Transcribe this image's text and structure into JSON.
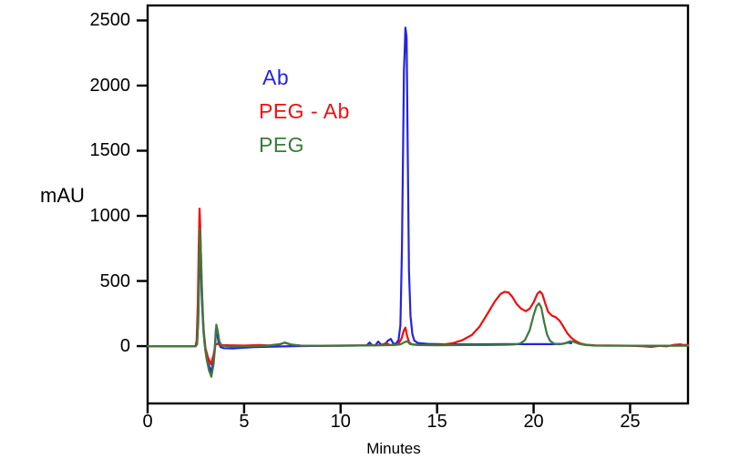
{
  "figure": {
    "background": "#ffffff",
    "frame_color": "#000000"
  },
  "chart_data": {
    "type": "line",
    "title": "",
    "xlabel": "Minutes",
    "ylabel": "mAU",
    "xlim": [
      0,
      28
    ],
    "ylim": [
      -440,
      2615
    ],
    "x_ticks": [
      0,
      5,
      10,
      15,
      20,
      25
    ],
    "y_ticks": [
      0,
      500,
      1000,
      1500,
      2000,
      2500
    ],
    "grid": false,
    "legend": {
      "position": "inside-upper-left",
      "entries": [
        {
          "label": "Ab",
          "color": "#2424e0",
          "x": 288,
          "y": 72
        },
        {
          "label": "PEG - Ab",
          "color": "#f20d0d",
          "x": 284,
          "y": 109
        },
        {
          "label": "PEG",
          "color": "#3c7a3c",
          "x": 284,
          "y": 146
        }
      ]
    },
    "series": [
      {
        "name": "Ab",
        "color": "#2424e0",
        "points": [
          [
            0,
            0
          ],
          [
            2.0,
            0
          ],
          [
            2.5,
            0
          ],
          [
            2.56,
            15
          ],
          [
            2.62,
            180
          ],
          [
            2.67,
            530
          ],
          [
            2.71,
            780
          ],
          [
            2.75,
            640
          ],
          [
            2.82,
            320
          ],
          [
            2.9,
            100
          ],
          [
            3.0,
            -40
          ],
          [
            3.12,
            -125
          ],
          [
            3.28,
            -195
          ],
          [
            3.4,
            -130
          ],
          [
            3.48,
            -15
          ],
          [
            3.54,
            135
          ],
          [
            3.6,
            100
          ],
          [
            3.68,
            30
          ],
          [
            3.78,
            -8
          ],
          [
            3.95,
            -16
          ],
          [
            4.4,
            -18
          ],
          [
            4.9,
            -13
          ],
          [
            5.5,
            -8
          ],
          [
            6.5,
            -4
          ],
          [
            7.5,
            0
          ],
          [
            9.0,
            2
          ],
          [
            10.5,
            4
          ],
          [
            11.35,
            5
          ],
          [
            11.5,
            28
          ],
          [
            11.62,
            9
          ],
          [
            11.8,
            7
          ],
          [
            11.95,
            35
          ],
          [
            12.1,
            11
          ],
          [
            12.3,
            13
          ],
          [
            12.45,
            42
          ],
          [
            12.6,
            55
          ],
          [
            12.72,
            22
          ],
          [
            12.85,
            16
          ],
          [
            13.0,
            45
          ],
          [
            13.1,
            160
          ],
          [
            13.18,
            750
          ],
          [
            13.24,
            1550
          ],
          [
            13.28,
            2120
          ],
          [
            13.32,
            2260
          ],
          [
            13.36,
            2445
          ],
          [
            13.42,
            2370
          ],
          [
            13.48,
            1450
          ],
          [
            13.54,
            580
          ],
          [
            13.62,
            230
          ],
          [
            13.72,
            90
          ],
          [
            13.82,
            42
          ],
          [
            14.0,
            24
          ],
          [
            14.5,
            17
          ],
          [
            15.5,
            14
          ],
          [
            17.0,
            14
          ],
          [
            18.5,
            15
          ],
          [
            20.0,
            15
          ],
          [
            21.0,
            15
          ],
          [
            21.5,
            18
          ],
          [
            21.8,
            27
          ],
          [
            21.95,
            22
          ]
        ]
      },
      {
        "name": "PEG - Ab",
        "color": "#f20d0d",
        "points": [
          [
            0,
            0
          ],
          [
            2.0,
            0
          ],
          [
            2.48,
            0
          ],
          [
            2.54,
            40
          ],
          [
            2.6,
            330
          ],
          [
            2.65,
            760
          ],
          [
            2.69,
            1055
          ],
          [
            2.73,
            910
          ],
          [
            2.8,
            470
          ],
          [
            2.9,
            130
          ],
          [
            3.0,
            -15
          ],
          [
            3.12,
            -85
          ],
          [
            3.28,
            -140
          ],
          [
            3.42,
            -65
          ],
          [
            3.52,
            12
          ],
          [
            3.62,
            18
          ],
          [
            3.76,
            8
          ],
          [
            4.3,
            6
          ],
          [
            5.0,
            4
          ],
          [
            5.8,
            9
          ],
          [
            6.3,
            5
          ],
          [
            6.85,
            15
          ],
          [
            7.1,
            26
          ],
          [
            7.4,
            12
          ],
          [
            7.9,
            4
          ],
          [
            9.0,
            3
          ],
          [
            10.0,
            4
          ],
          [
            11.0,
            5
          ],
          [
            11.8,
            6
          ],
          [
            12.1,
            8
          ],
          [
            12.35,
            23
          ],
          [
            12.55,
            9
          ],
          [
            12.8,
            10
          ],
          [
            13.0,
            18
          ],
          [
            13.15,
            55
          ],
          [
            13.28,
            122
          ],
          [
            13.36,
            142
          ],
          [
            13.44,
            82
          ],
          [
            13.55,
            30
          ],
          [
            13.7,
            14
          ],
          [
            14.2,
            8
          ],
          [
            14.8,
            8
          ],
          [
            15.3,
            12
          ],
          [
            15.8,
            22
          ],
          [
            16.3,
            45
          ],
          [
            16.8,
            85
          ],
          [
            17.2,
            150
          ],
          [
            17.6,
            245
          ],
          [
            18.0,
            345
          ],
          [
            18.3,
            402
          ],
          [
            18.5,
            417
          ],
          [
            18.7,
            412
          ],
          [
            18.9,
            378
          ],
          [
            19.1,
            328
          ],
          [
            19.35,
            288
          ],
          [
            19.6,
            268
          ],
          [
            19.8,
            288
          ],
          [
            20.0,
            336
          ],
          [
            20.2,
            403
          ],
          [
            20.33,
            420
          ],
          [
            20.45,
            400
          ],
          [
            20.6,
            330
          ],
          [
            20.75,
            263
          ],
          [
            20.95,
            234
          ],
          [
            21.15,
            222
          ],
          [
            21.35,
            194
          ],
          [
            21.55,
            148
          ],
          [
            21.75,
            98
          ],
          [
            21.95,
            64
          ],
          [
            22.15,
            42
          ],
          [
            22.4,
            22
          ],
          [
            22.7,
            11
          ],
          [
            23.2,
            6
          ],
          [
            24.0,
            5
          ],
          [
            25.0,
            3
          ],
          [
            25.6,
            0
          ],
          [
            26.1,
            -6
          ],
          [
            26.5,
            2
          ],
          [
            26.9,
            -2
          ],
          [
            27.3,
            10
          ],
          [
            27.6,
            14
          ],
          [
            27.8,
            8
          ],
          [
            28.0,
            10
          ]
        ]
      },
      {
        "name": "PEG",
        "color": "#3c7a3c",
        "points": [
          [
            0,
            0
          ],
          [
            2.0,
            0
          ],
          [
            2.5,
            0
          ],
          [
            2.57,
            20
          ],
          [
            2.63,
            270
          ],
          [
            2.68,
            660
          ],
          [
            2.72,
            900
          ],
          [
            2.77,
            670
          ],
          [
            2.85,
            250
          ],
          [
            2.95,
            15
          ],
          [
            3.05,
            -95
          ],
          [
            3.18,
            -185
          ],
          [
            3.3,
            -235
          ],
          [
            3.42,
            -140
          ],
          [
            3.5,
            -5
          ],
          [
            3.56,
            165
          ],
          [
            3.63,
            118
          ],
          [
            3.72,
            34
          ],
          [
            3.84,
            4
          ],
          [
            4.4,
            -4
          ],
          [
            5.2,
            -1
          ],
          [
            6.2,
            3
          ],
          [
            6.85,
            13
          ],
          [
            7.1,
            28
          ],
          [
            7.45,
            12
          ],
          [
            7.95,
            4
          ],
          [
            9.0,
            3
          ],
          [
            10.5,
            4
          ],
          [
            12.0,
            6
          ],
          [
            12.8,
            8
          ],
          [
            13.1,
            13
          ],
          [
            13.3,
            30
          ],
          [
            13.45,
            38
          ],
          [
            13.6,
            16
          ],
          [
            13.95,
            8
          ],
          [
            15.0,
            6
          ],
          [
            16.5,
            8
          ],
          [
            17.5,
            8
          ],
          [
            18.5,
            10
          ],
          [
            19.0,
            12
          ],
          [
            19.3,
            20
          ],
          [
            19.55,
            45
          ],
          [
            19.8,
            122
          ],
          [
            20.0,
            238
          ],
          [
            20.15,
            306
          ],
          [
            20.28,
            328
          ],
          [
            20.4,
            296
          ],
          [
            20.55,
            182
          ],
          [
            20.7,
            88
          ],
          [
            20.85,
            42
          ],
          [
            21.05,
            20
          ],
          [
            21.3,
            14
          ],
          [
            21.6,
            20
          ],
          [
            21.9,
            38
          ],
          [
            22.1,
            32
          ],
          [
            22.35,
            18
          ],
          [
            22.7,
            8
          ],
          [
            23.2,
            4
          ],
          [
            24.0,
            3
          ],
          [
            25.5,
            3
          ],
          [
            27.0,
            3
          ],
          [
            28.0,
            3
          ]
        ]
      }
    ]
  }
}
